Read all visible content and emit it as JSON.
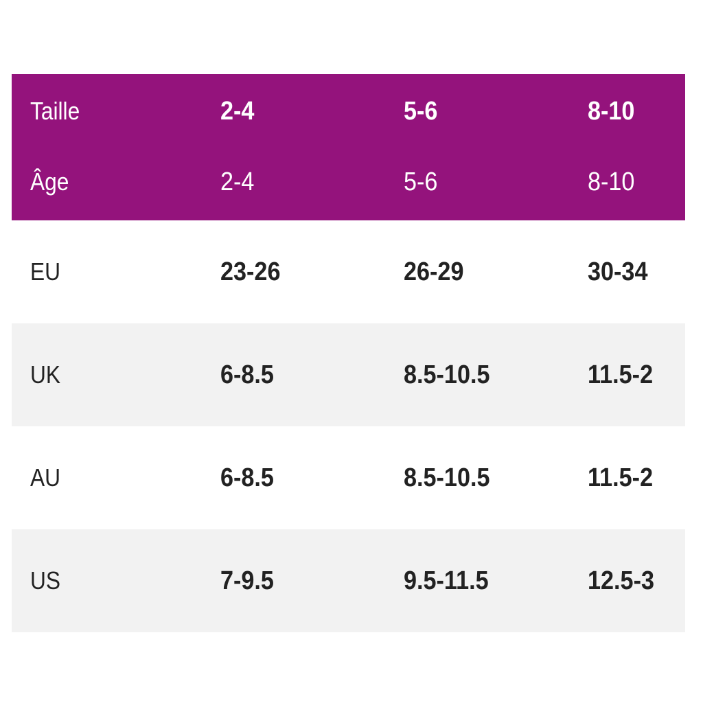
{
  "header": {
    "size_row": {
      "label": "Taille",
      "values": [
        "2-4",
        "5-6",
        "8-10"
      ]
    },
    "age_row": {
      "label": "Âge",
      "values": [
        "2-4",
        "5-6",
        "8-10"
      ]
    },
    "background_color": "#94137c"
  },
  "rows": [
    {
      "label": "EU",
      "values": [
        "23-26",
        "26-29",
        "30-34"
      ]
    },
    {
      "label": "UK",
      "values": [
        "6-8.5",
        "8.5-10.5",
        "11.5-2"
      ]
    },
    {
      "label": "AU",
      "values": [
        "6-8.5",
        "8.5-10.5",
        "11.5-2"
      ]
    },
    {
      "label": "US",
      "values": [
        "7-9.5",
        "9.5-11.5",
        "12.5-3"
      ]
    }
  ]
}
